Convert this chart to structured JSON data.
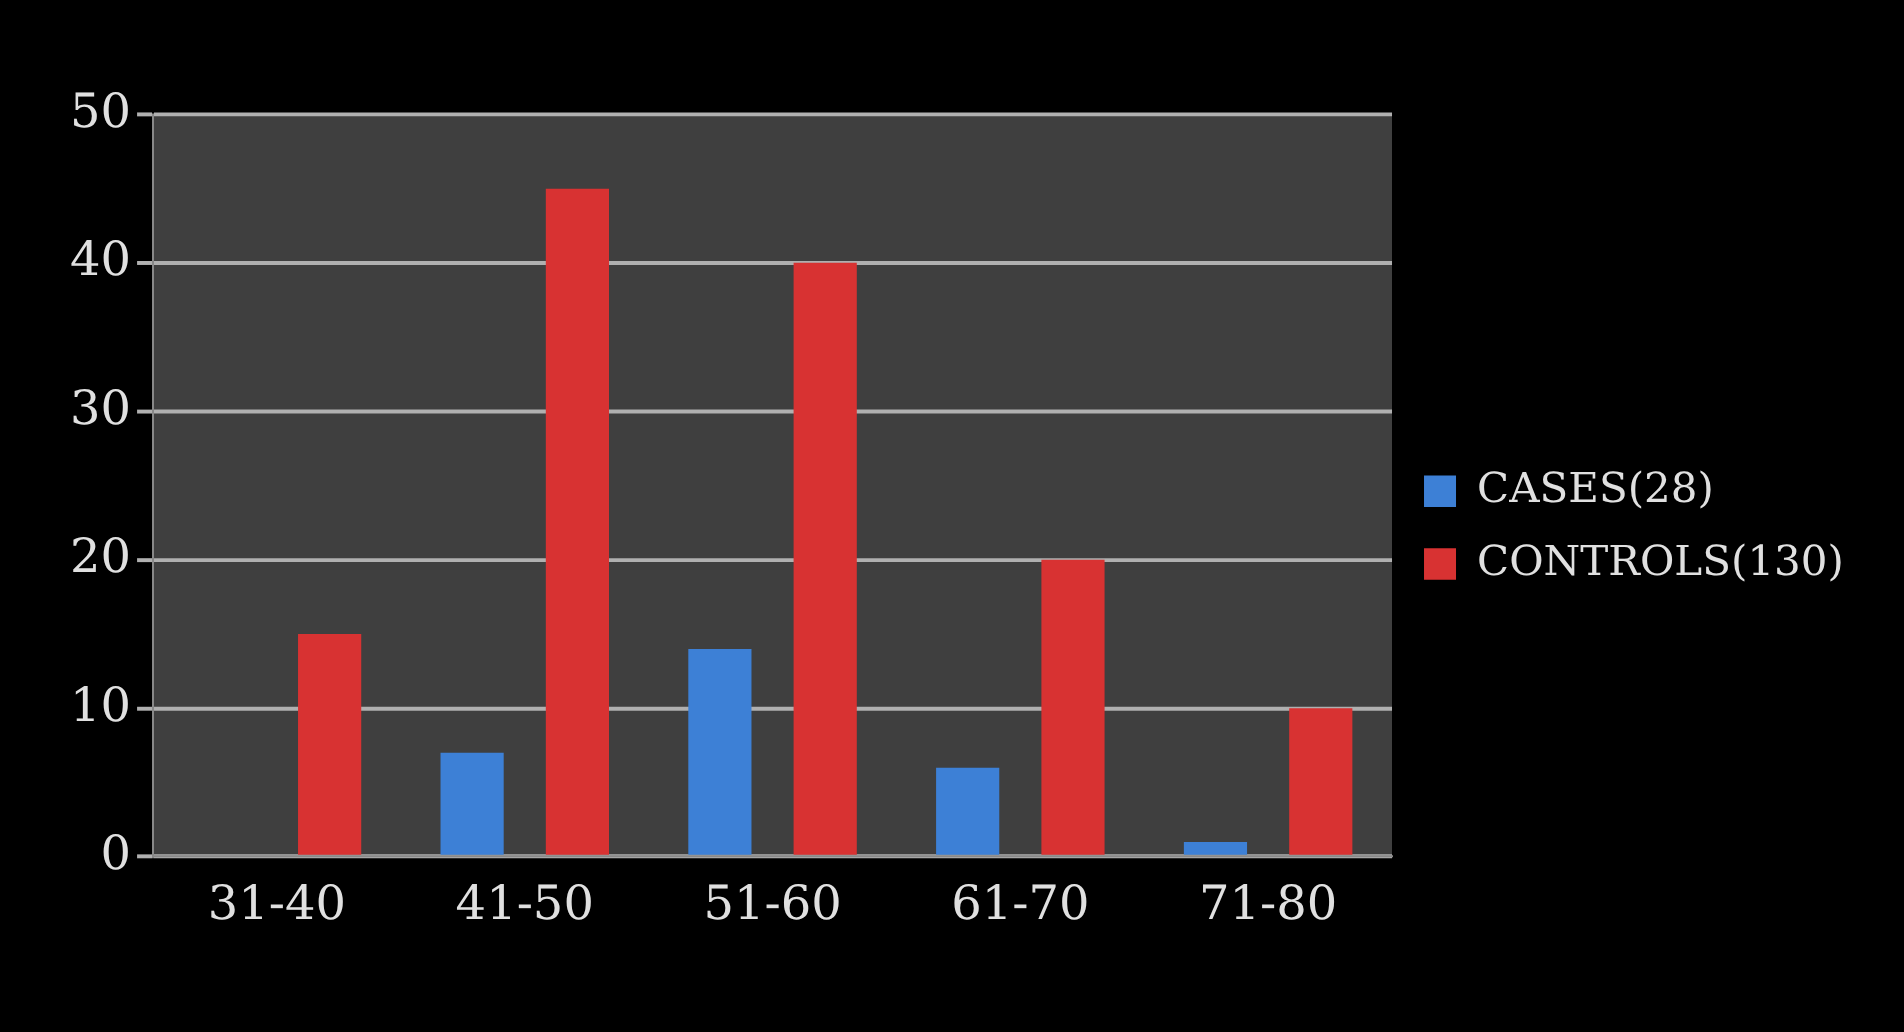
{
  "chart_data": {
    "type": "bar",
    "categories": [
      "31-40",
      "41-50",
      "51-60",
      "61-70",
      "71-80"
    ],
    "series": [
      {
        "name": "CASES(28)",
        "color": "#3d80d6",
        "values": [
          0,
          7,
          14,
          6,
          1
        ]
      },
      {
        "name": "CONTROLS(130)",
        "color": "#d83232",
        "values": [
          15,
          45,
          40,
          20,
          10
        ]
      }
    ],
    "ylim": [
      0,
      50
    ],
    "yticks": [
      0,
      10,
      20,
      30,
      40,
      50
    ],
    "grid": "y",
    "legend": "right"
  }
}
